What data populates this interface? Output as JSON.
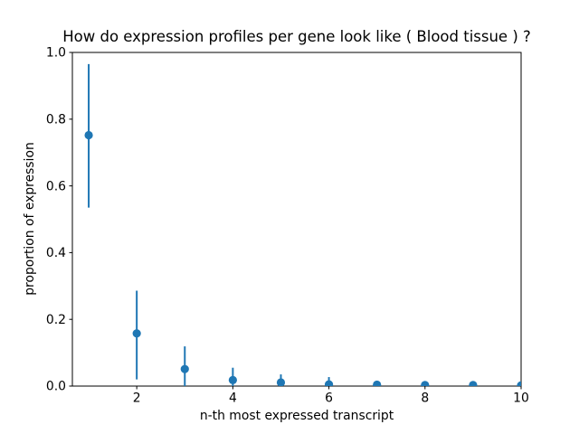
{
  "chart_data": {
    "type": "scatter",
    "subtype": "errorbar",
    "title": "How do expression profiles per gene look like ( Blood tissue ) ?",
    "xlabel": "n-th most expressed transcript",
    "ylabel": "proportion of expression",
    "xlim": [
      0.66,
      10
    ],
    "ylim": [
      0.0,
      1.0
    ],
    "xticks": [
      2,
      4,
      6,
      8,
      10
    ],
    "xtick_labels": [
      "2",
      "4",
      "6",
      "8",
      "10"
    ],
    "yticks": [
      0.0,
      0.2,
      0.4,
      0.6,
      0.8,
      1.0
    ],
    "ytick_labels": [
      "0.0",
      "0.2",
      "0.4",
      "0.6",
      "0.8",
      "1.0"
    ],
    "x": [
      1,
      2,
      3,
      4,
      5,
      6,
      7,
      8,
      9,
      10
    ],
    "y": [
      0.752,
      0.158,
      0.051,
      0.018,
      0.011,
      0.005,
      0.004,
      0.003,
      0.003,
      0.002
    ],
    "yerr_low": [
      0.535,
      0.02,
      0.0,
      0.0,
      0.0,
      0.0,
      0.0,
      0.0,
      0.0,
      0.0
    ],
    "yerr_high": [
      0.965,
      0.286,
      0.119,
      0.055,
      0.035,
      0.027,
      0.012,
      0.009,
      0.007,
      0.005
    ],
    "marker_color": "#1f77b4",
    "axes_color": "#000000",
    "background_color": "#ffffff",
    "grid": false,
    "legend": null
  }
}
